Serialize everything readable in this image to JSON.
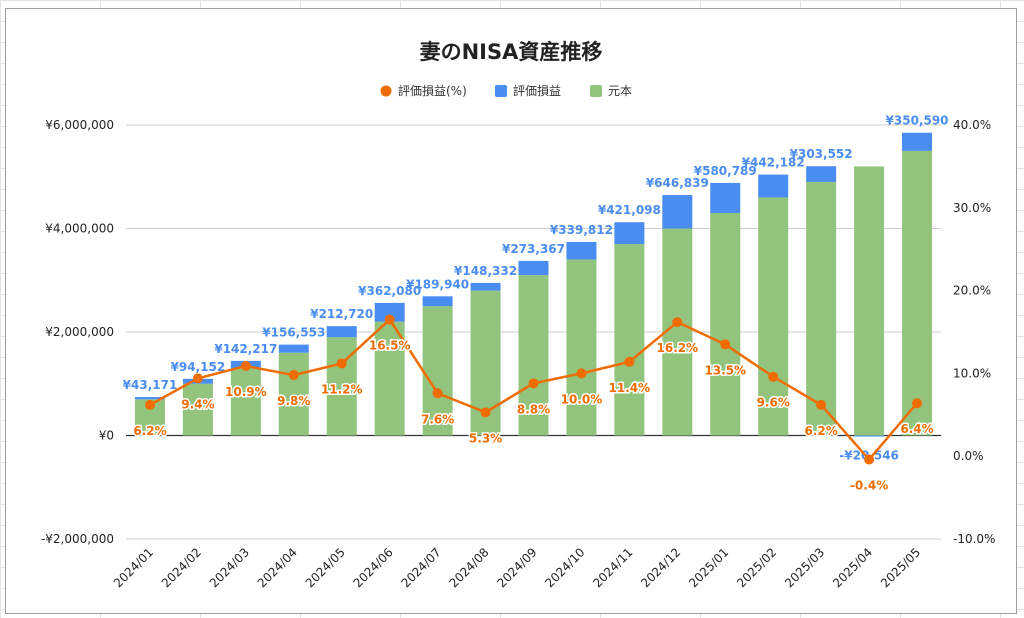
{
  "chart_data": {
    "type": "bar",
    "title": "妻のNISA資産推移",
    "legend_position": "top",
    "legend": [
      "評価損益(%)",
      "評価損益",
      "元本"
    ],
    "categories": [
      "2024/01",
      "2024/02",
      "2024/03",
      "2024/04",
      "2024/05",
      "2024/06",
      "2024/07",
      "2024/08",
      "2024/09",
      "2024/10",
      "2024/11",
      "2024/12",
      "2025/01",
      "2025/02",
      "2025/03",
      "2025/04",
      "2025/05"
    ],
    "series": [
      {
        "name": "元本",
        "type": "bar",
        "stacked": true,
        "axis": "left",
        "color": "#93c47d",
        "values": [
          700000,
          1000000,
          1300000,
          1600000,
          1900000,
          2200000,
          2500000,
          2800000,
          3100000,
          3400000,
          3700000,
          4000000,
          4300000,
          4600000,
          4900000,
          5200000,
          5500000
        ]
      },
      {
        "name": "評価損益",
        "type": "bar",
        "stacked": true,
        "axis": "left",
        "color": "#4a8df1",
        "values": [
          43171,
          94152,
          142217,
          156553,
          212720,
          362080,
          189940,
          148332,
          273367,
          339812,
          421098,
          646839,
          580789,
          442182,
          303552,
          -20546,
          350590
        ]
      },
      {
        "name": "評価損益(%)",
        "type": "line",
        "axis": "right",
        "color": "#ef6c00",
        "values": [
          6.2,
          9.4,
          10.9,
          9.8,
          11.2,
          16.5,
          7.6,
          5.3,
          8.8,
          10.0,
          11.4,
          16.2,
          13.5,
          9.6,
          6.2,
          -0.4,
          6.4
        ]
      }
    ],
    "bar_labels": [
      "¥43,171",
      "¥94,152",
      "¥142,217",
      "¥156,553",
      "¥212,720",
      "¥362,080",
      "¥189,940",
      "¥148,332",
      "¥273,367",
      "¥339,812",
      "¥421,098",
      "¥646,839",
      "¥580,789",
      "¥442,182",
      "¥303,552",
      "-¥20,546",
      "¥350,590"
    ],
    "pct_labels": [
      "6.2%",
      "9.4%",
      "10.9%",
      "9.8%",
      "11.2%",
      "16.5%",
      "7.6%",
      "5.3%",
      "8.8%",
      "10.0%",
      "11.4%",
      "16.2%",
      "13.5%",
      "9.6%",
      "6.2%",
      "-0.4%",
      "6.4%"
    ],
    "y_left": {
      "ylim": [
        -2000000,
        6000000
      ],
      "ticks": [
        6000000,
        4000000,
        2000000,
        0,
        -2000000
      ],
      "tick_labels": [
        "¥6,000,000",
        "¥4,000,000",
        "¥2,000,000",
        "¥0",
        "-¥2,000,000"
      ]
    },
    "y_right": {
      "ylim": [
        -10,
        40
      ],
      "ticks": [
        40,
        30,
        20,
        10,
        0,
        -10
      ],
      "tick_labels": [
        "40.0%",
        "30.0%",
        "20.0%",
        "10.0%",
        "0.0%",
        "-10.0%"
      ]
    },
    "grid": true
  }
}
